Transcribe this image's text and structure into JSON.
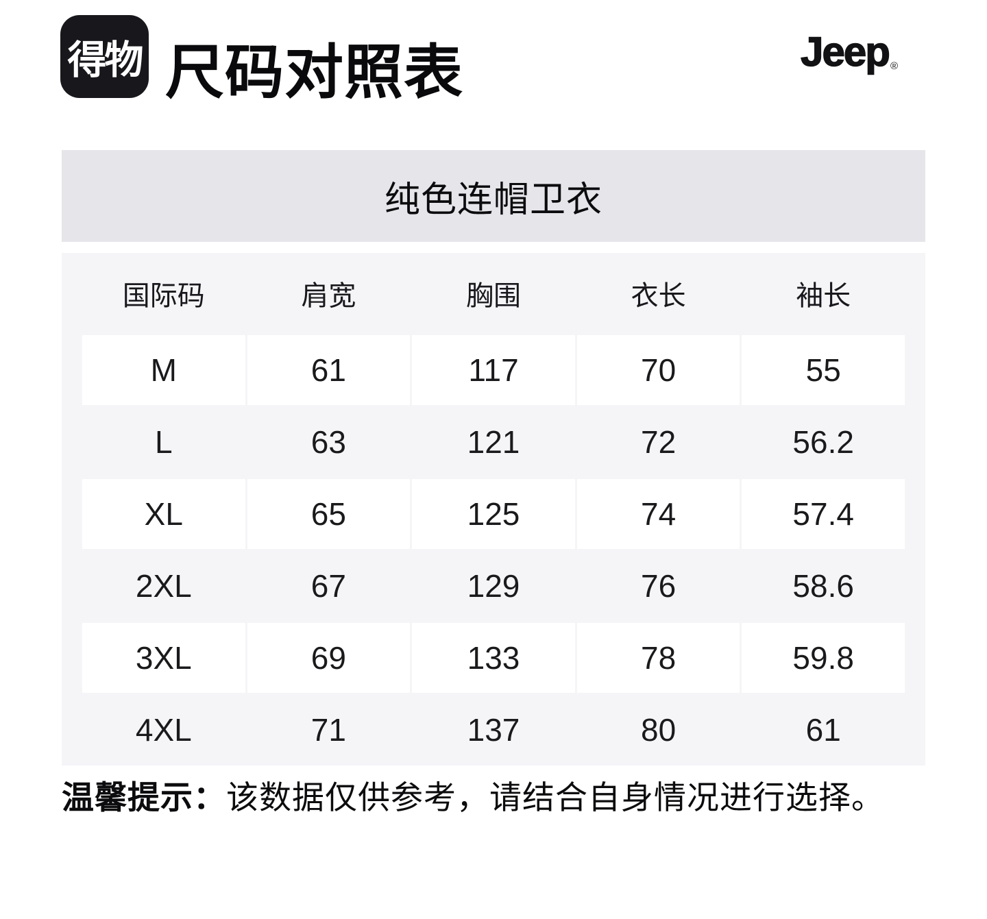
{
  "header": {
    "logo_text": "得物",
    "title": "尺码对照表",
    "brand": "Jeep",
    "brand_reg": "®"
  },
  "product": {
    "name": "纯色连帽卫衣"
  },
  "table": {
    "columns": [
      "国际码",
      "肩宽",
      "胸围",
      "衣长",
      "袖长"
    ],
    "rows": [
      {
        "size": "M",
        "values": [
          "61",
          "117",
          "70",
          "55"
        ]
      },
      {
        "size": "L",
        "values": [
          "63",
          "121",
          "72",
          "56.2"
        ]
      },
      {
        "size": "XL",
        "values": [
          "65",
          "125",
          "74",
          "57.4"
        ]
      },
      {
        "size": "2XL",
        "values": [
          "67",
          "129",
          "76",
          "58.6"
        ]
      },
      {
        "size": "3XL",
        "values": [
          "69",
          "133",
          "78",
          "59.8"
        ]
      },
      {
        "size": "4XL",
        "values": [
          "71",
          "137",
          "80",
          "61"
        ]
      }
    ]
  },
  "note": {
    "bold": "温馨提示：",
    "rest": "该数据仅供参考，请结合自身情况进行选择。"
  },
  "colors": {
    "banner_bg": "#e6e5ea",
    "table_bg": "#f5f5f8",
    "cell_bg": "#ffffff",
    "logo_bg": "#18181c",
    "text": "#111113"
  }
}
